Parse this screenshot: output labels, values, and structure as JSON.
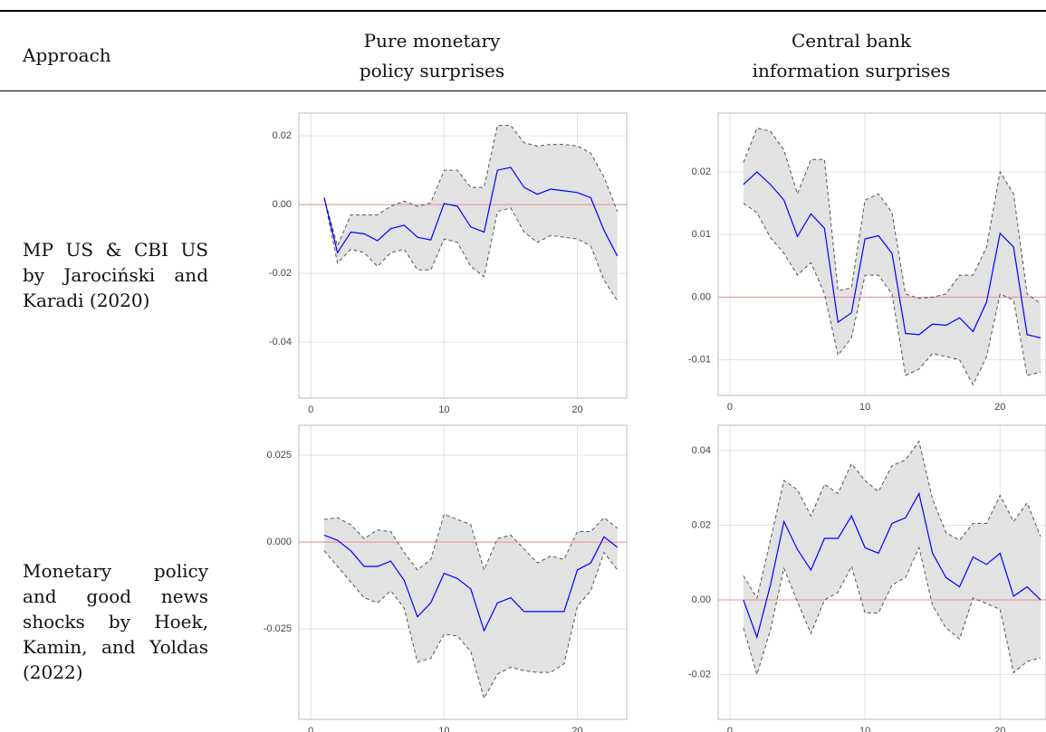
{
  "table": {
    "header": [
      "Approach",
      "Pure monetary\npolicy surprises",
      "Central bank\ninformation surprises"
    ],
    "rows": [
      [
        "MP US & CBI US by Jarociński and Karadi (2020)"
      ],
      [
        "Monetary policy and good news shocks by Hoek, Kamin, and Yoldas (2022)"
      ]
    ]
  },
  "chart_data": [
    {
      "type": "line",
      "x": [
        1,
        2,
        3,
        4,
        5,
        6,
        7,
        8,
        9,
        10,
        11,
        12,
        13,
        14,
        15,
        16,
        17,
        18,
        19,
        20,
        21,
        22,
        23
      ],
      "values": [
        0.002,
        -0.014,
        -0.008,
        -0.0085,
        -0.0105,
        -0.007,
        -0.006,
        -0.0095,
        -0.0103,
        0.0003,
        -0.0005,
        -0.0065,
        -0.008,
        0.01,
        0.0108,
        0.005,
        0.003,
        0.0045,
        0.004,
        0.0035,
        0.002,
        -0.0075,
        -0.015
      ],
      "upper": [
        0.002,
        -0.012,
        -0.003,
        -0.003,
        -0.003,
        -0.0005,
        0.001,
        -0.0005,
        0.0005,
        0.01,
        0.01,
        0.005,
        0.005,
        0.023,
        0.023,
        0.018,
        0.017,
        0.0175,
        0.0175,
        0.017,
        0.015,
        0.008,
        -0.002
      ],
      "lower": [
        0.002,
        -0.017,
        -0.013,
        -0.014,
        -0.018,
        -0.014,
        -0.013,
        -0.019,
        -0.019,
        -0.01,
        -0.011,
        -0.018,
        -0.021,
        -0.002,
        -0.001,
        -0.008,
        -0.011,
        -0.009,
        -0.0095,
        -0.01,
        -0.012,
        -0.022,
        -0.028
      ],
      "color": "#0000ff",
      "band_color": "#e2e2e2",
      "hline": 0,
      "hline_color": "#f08a8a",
      "xlim": [
        -0.9,
        23.7
      ],
      "xticks": [
        0,
        10,
        20
      ],
      "ylim": [
        -0.0563,
        0.0266
      ],
      "yticks": [
        -0.04,
        -0.02,
        {
          "value": 0,
          "label": "0.00"
        },
        0.02
      ],
      "grid": true
    },
    {
      "type": "line",
      "x": [
        1,
        2,
        3,
        4,
        5,
        6,
        7,
        8,
        9,
        10,
        11,
        12,
        13,
        14,
        15,
        16,
        17,
        18,
        19,
        20,
        21,
        22,
        23
      ],
      "values": [
        0.018,
        0.02,
        0.018,
        0.0155,
        0.0097,
        0.0133,
        0.011,
        -0.004,
        -0.0025,
        0.0093,
        0.0098,
        0.007,
        -0.0058,
        -0.006,
        -0.0043,
        -0.0045,
        -0.0033,
        -0.0055,
        -0.0008,
        0.0102,
        0.008,
        -0.006,
        -0.0065
      ],
      "upper": [
        0.0215,
        0.027,
        0.0265,
        0.0235,
        0.0165,
        0.022,
        0.022,
        0.001,
        0.0015,
        0.0155,
        0.0165,
        0.0135,
        0.0005,
        -0.0002,
        0.0,
        0.0005,
        0.0035,
        0.0035,
        0.008,
        0.02,
        0.0165,
        0.0005,
        -0.001
      ],
      "lower": [
        0.015,
        0.0135,
        0.0095,
        0.007,
        0.0035,
        0.0055,
        0.0005,
        -0.0093,
        -0.0065,
        0.0035,
        0.0035,
        0.0005,
        -0.0125,
        -0.0115,
        -0.009,
        -0.0095,
        -0.01,
        -0.014,
        -0.0095,
        0.0005,
        -0.0005,
        -0.0125,
        -0.012
      ],
      "color": "#0000ff",
      "band_color": "#e2e2e2",
      "hline": 0,
      "hline_color": "#f08a8a",
      "xlim": [
        -0.87,
        23.4
      ],
      "xticks": [
        0,
        10,
        20
      ],
      "ylim": [
        -0.0157,
        0.0294
      ],
      "yticks": [
        -0.01,
        {
          "value": 0,
          "label": "0.00"
        },
        0.01,
        0.02
      ],
      "grid": true
    },
    {
      "type": "line",
      "x": [
        1,
        2,
        3,
        4,
        5,
        6,
        7,
        8,
        9,
        10,
        11,
        12,
        13,
        14,
        15,
        16,
        17,
        18,
        19,
        20,
        21,
        22,
        23
      ],
      "values": [
        0.002,
        0.0005,
        -0.0025,
        -0.007,
        -0.007,
        -0.0055,
        -0.011,
        -0.0215,
        -0.0175,
        -0.009,
        -0.0105,
        -0.0135,
        -0.0255,
        -0.0175,
        -0.016,
        -0.02,
        -0.02,
        -0.02,
        -0.02,
        -0.008,
        -0.006,
        0.0015,
        -0.0015
      ],
      "upper": [
        0.0065,
        0.007,
        0.005,
        0.001,
        0.0035,
        0.003,
        -0.003,
        -0.008,
        -0.005,
        0.008,
        0.0065,
        0.005,
        -0.008,
        0.001,
        0.002,
        -0.002,
        -0.006,
        -0.004,
        -0.005,
        0.003,
        0.003,
        0.007,
        0.004
      ],
      "lower": [
        -0.0025,
        -0.007,
        -0.0115,
        -0.016,
        -0.0175,
        -0.014,
        -0.019,
        -0.0345,
        -0.0335,
        -0.0265,
        -0.027,
        -0.0315,
        -0.045,
        -0.038,
        -0.036,
        -0.037,
        -0.0375,
        -0.0375,
        -0.035,
        -0.0185,
        -0.014,
        -0.003,
        -0.008
      ],
      "color": "#0000ff",
      "band_color": "#e2e2e2",
      "hline": 0,
      "hline_color": "#f08a8a",
      "xlim": [
        -0.9,
        23.7
      ],
      "xticks": [
        0,
        10,
        20
      ],
      "ylim": [
        -0.051,
        0.0336
      ],
      "yticks": [
        -0.025,
        {
          "value": 0,
          "label": "0.000"
        },
        0.025
      ],
      "grid": true
    },
    {
      "type": "line",
      "x": [
        1,
        2,
        3,
        4,
        5,
        6,
        7,
        8,
        9,
        10,
        11,
        12,
        13,
        14,
        15,
        16,
        17,
        18,
        19,
        20,
        21,
        22,
        23
      ],
      "values": [
        0.0,
        -0.01,
        0.004,
        0.021,
        0.0135,
        0.008,
        0.0165,
        0.0165,
        0.0225,
        0.014,
        0.0125,
        0.0205,
        0.022,
        0.0285,
        0.0125,
        0.006,
        0.0035,
        0.0115,
        0.0095,
        0.0125,
        0.001,
        0.0035,
        0.0
      ],
      "upper": [
        0.0065,
        0.0005,
        0.016,
        0.032,
        0.0295,
        0.0225,
        0.031,
        0.0285,
        0.0365,
        0.032,
        0.029,
        0.036,
        0.0375,
        0.0425,
        0.027,
        0.018,
        0.016,
        0.0205,
        0.0205,
        0.028,
        0.021,
        0.026,
        0.017
      ],
      "lower": [
        -0.0075,
        -0.02,
        -0.008,
        0.0085,
        -0.0005,
        -0.009,
        0.0,
        0.002,
        0.009,
        -0.0035,
        -0.0035,
        0.004,
        0.006,
        0.014,
        -0.0015,
        -0.0075,
        -0.0105,
        0.0005,
        -0.001,
        -0.0025,
        -0.0195,
        -0.0165,
        -0.0155
      ],
      "color": "#0000ff",
      "band_color": "#e2e2e2",
      "hline": 0,
      "hline_color": "#f08a8a",
      "xlim": [
        -0.87,
        23.4
      ],
      "xticks": [
        0,
        10,
        20
      ],
      "ylim": [
        -0.032,
        0.0468
      ],
      "yticks": [
        -0.02,
        {
          "value": 0,
          "label": "0.00"
        },
        0.02,
        0.04
      ],
      "grid": true
    }
  ]
}
